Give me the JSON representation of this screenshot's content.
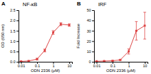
{
  "chart_data": [
    {
      "type": "line",
      "annotations": [
        "A"
      ],
      "title": "NF-κB",
      "xlabel": "ODN 2336 (μM)",
      "ylabel": "OD (650 nm)",
      "x": [
        0.01,
        0.03,
        0.1,
        0.3,
        1,
        3,
        10
      ],
      "values": [
        0.02,
        0.04,
        0.13,
        0.55,
        1.42,
        1.82,
        1.78
      ],
      "errors": [
        0.01,
        0.01,
        0.04,
        0.07,
        0.09,
        0.07,
        0.06
      ],
      "xlim": [
        0.007,
        15
      ],
      "xticks": [
        0.01,
        0.1,
        1,
        10
      ],
      "ylim": [
        0,
        2.5
      ],
      "yticks": [
        {
          "value": 0,
          "label": "0.0"
        },
        0.5,
        {
          "value": 1,
          "label": "1.0"
        },
        1.5,
        {
          "value": 2,
          "label": "2.0"
        },
        2.5
      ],
      "log": "x",
      "color": "#d44",
      "marker": "square"
    },
    {
      "type": "line",
      "annotations": [
        "B"
      ],
      "title": "IRF",
      "xlabel": "ODN 2336 (μM)",
      "ylabel": "Fold Increase",
      "x": [
        0.01,
        0.03,
        0.1,
        0.3,
        1,
        3,
        10
      ],
      "values": [
        0.5,
        0.7,
        1.0,
        1.8,
        10,
        30,
        35
      ],
      "errors": [
        0.2,
        0.2,
        0.3,
        0.5,
        2.5,
        9,
        13
      ],
      "xlim": [
        0.007,
        15
      ],
      "xticks": [
        0.01,
        0.1,
        1,
        10
      ],
      "ylim": [
        0,
        50
      ],
      "yticks": [
        0,
        10,
        20,
        30,
        40,
        50
      ],
      "log": "x",
      "color": "#d44",
      "marker": "square"
    }
  ]
}
